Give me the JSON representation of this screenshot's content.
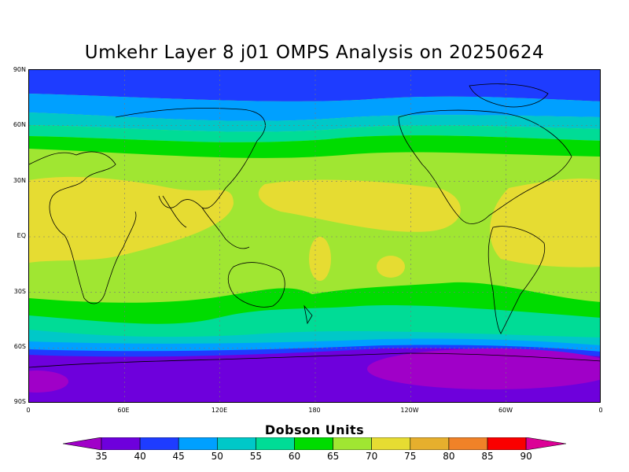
{
  "title": "Umkehr Layer 8 j01 OMPS Analysis on 20250624",
  "colorbar": {
    "title": "Dobson Units",
    "labels": [
      "35",
      "40",
      "45",
      "50",
      "55",
      "60",
      "65",
      "70",
      "75",
      "80",
      "85",
      "90"
    ],
    "colors": [
      "#a000c8",
      "#6e00dc",
      "#1e3cff",
      "#00a0ff",
      "#00c8c8",
      "#00dc96",
      "#00dc00",
      "#a0e632",
      "#e6dc32",
      "#e6af2d",
      "#f08228",
      "#fa0000",
      "#dc0096"
    ]
  },
  "lat_labels": [
    "90N",
    "60N",
    "30N",
    "EQ",
    "30S",
    "60S",
    "90S"
  ],
  "lon_labels": [
    "0",
    "60E",
    "120E",
    "180",
    "120W",
    "60W",
    "0"
  ],
  "chart_data": {
    "type": "heatmap",
    "title": "Umkehr Layer 8 j01 OMPS Analysis on 20250624",
    "xlabel": "",
    "ylabel": "",
    "colorbar_label": "Dobson Units",
    "levels": [
      35,
      40,
      45,
      50,
      55,
      60,
      65,
      70,
      75,
      80,
      85,
      90
    ],
    "xlim": [
      0,
      360
    ],
    "ylim": [
      -90,
      90
    ],
    "grid": true,
    "zonal_bands_lat_to_value": [
      {
        "lat": 90,
        "value": 42
      },
      {
        "lat": 75,
        "value": 47
      },
      {
        "lat": 65,
        "value": 52
      },
      {
        "lat": 55,
        "value": 57
      },
      {
        "lat": 50,
        "value": 62
      },
      {
        "lat": 40,
        "value": 67
      },
      {
        "lat": 20,
        "value": 72
      },
      {
        "lat": 0,
        "value": 70
      },
      {
        "lat": -25,
        "value": 68
      },
      {
        "lat": -40,
        "value": 63
      },
      {
        "lat": -48,
        "value": 58
      },
      {
        "lat": -55,
        "value": 53
      },
      {
        "lat": -62,
        "value": 46
      },
      {
        "lat": -70,
        "value": 38
      },
      {
        "lat": -90,
        "value": 37
      }
    ]
  }
}
